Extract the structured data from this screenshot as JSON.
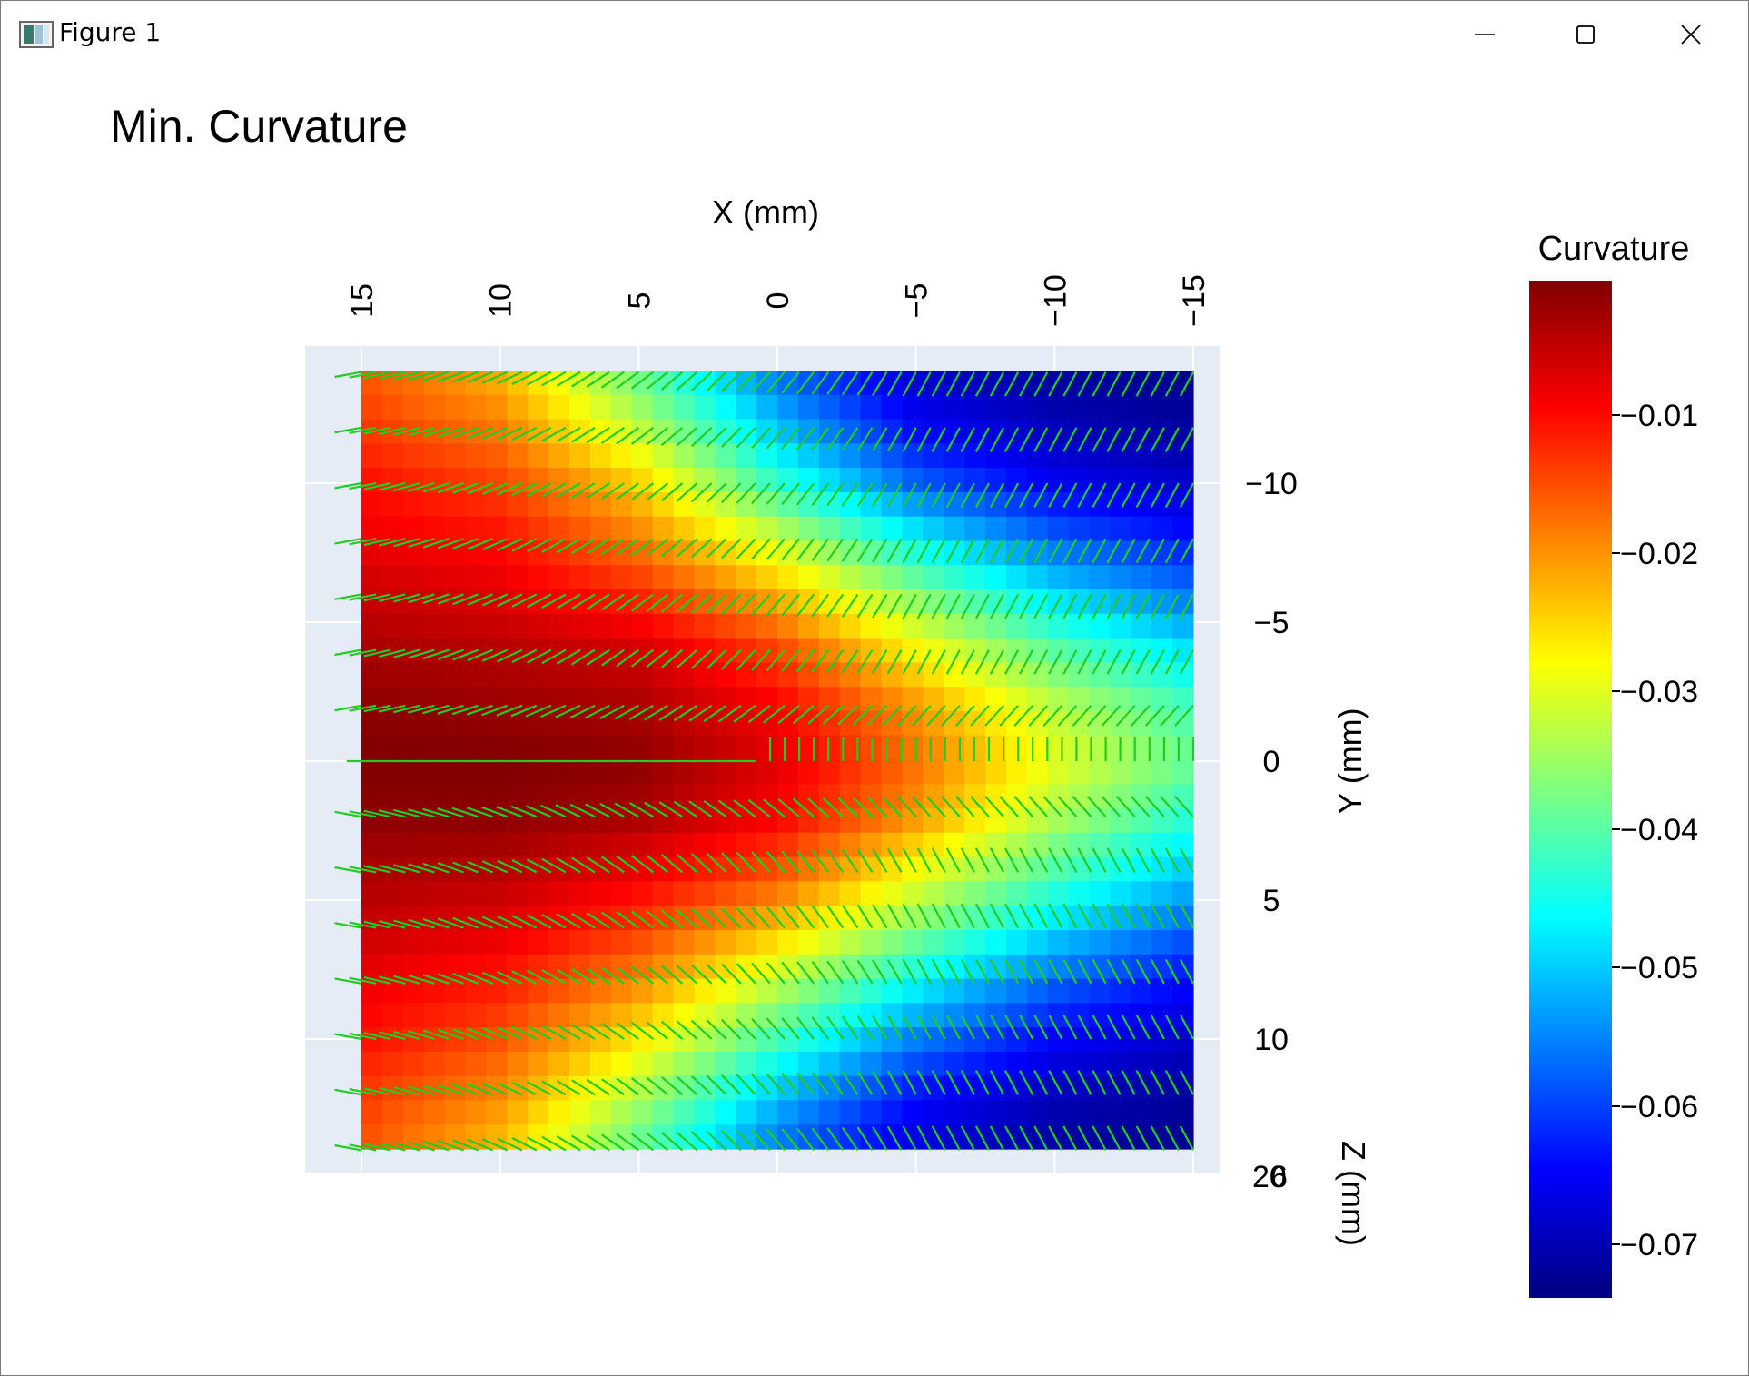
{
  "window": {
    "title": "Figure 1",
    "icons": [
      "figure-app-icon",
      "minimize-icon",
      "maximize-icon",
      "close-icon"
    ]
  },
  "figure": {
    "title": "Min. Curvature",
    "axis_labels": {
      "x": "X (mm)",
      "y": "Y (mm)",
      "z": "Z (mm)"
    },
    "x_ticks": [
      "15",
      "10",
      "5",
      "0",
      "−5",
      "−10",
      "−15"
    ],
    "y_ticks": [
      "−10",
      "−5",
      "0",
      "5",
      "10"
    ],
    "z_ticks_overlap": [
      "20",
      "6"
    ],
    "colorbar": {
      "title": "Curvature",
      "ticks": [
        "−0.01",
        "−0.02",
        "−0.03",
        "−0.04",
        "−0.05",
        "−0.06",
        "−0.07"
      ],
      "colormap": "jet"
    },
    "colors": {
      "panel_background": "#e5ecf6",
      "arrow": "#22cc22",
      "grid": "#ffffff"
    }
  },
  "chart_data": {
    "type": "heatmap",
    "title": "Min. Curvature",
    "xlabel": "X (mm)",
    "ylabel": "Y (mm)",
    "zlabel": "Z (mm)",
    "x_range": [
      15,
      -15
    ],
    "y_range": [
      -14,
      14
    ],
    "colorbar_range": [
      -0.075,
      -0.002
    ],
    "x": [
      15,
      10,
      5,
      0,
      -5,
      -10,
      -15
    ],
    "y": [
      -14,
      -12,
      -10,
      -8,
      -6,
      -4,
      -2,
      0,
      2,
      4,
      6,
      8,
      10,
      12,
      14
    ],
    "z": [
      [
        -0.017,
        -0.024,
        -0.04,
        -0.058,
        -0.07,
        -0.073,
        -0.074
      ],
      [
        -0.015,
        -0.02,
        -0.034,
        -0.052,
        -0.066,
        -0.071,
        -0.073
      ],
      [
        -0.012,
        -0.016,
        -0.026,
        -0.044,
        -0.059,
        -0.067,
        -0.07
      ],
      [
        -0.01,
        -0.012,
        -0.02,
        -0.033,
        -0.048,
        -0.059,
        -0.065
      ],
      [
        -0.007,
        -0.009,
        -0.014,
        -0.024,
        -0.038,
        -0.05,
        -0.058
      ],
      [
        -0.005,
        -0.006,
        -0.008,
        -0.016,
        -0.029,
        -0.041,
        -0.05
      ],
      [
        -0.003,
        -0.004,
        -0.005,
        -0.011,
        -0.022,
        -0.034,
        -0.043
      ],
      [
        -0.002,
        -0.002,
        -0.003,
        -0.009,
        -0.019,
        -0.031,
        -0.04
      ],
      [
        -0.003,
        -0.003,
        -0.005,
        -0.011,
        -0.022,
        -0.035,
        -0.045
      ],
      [
        -0.005,
        -0.006,
        -0.01,
        -0.017,
        -0.03,
        -0.042,
        -0.052
      ],
      [
        -0.007,
        -0.009,
        -0.015,
        -0.025,
        -0.038,
        -0.05,
        -0.059
      ],
      [
        -0.01,
        -0.013,
        -0.021,
        -0.034,
        -0.048,
        -0.059,
        -0.066
      ],
      [
        -0.012,
        -0.017,
        -0.028,
        -0.043,
        -0.057,
        -0.066,
        -0.07
      ],
      [
        -0.015,
        -0.021,
        -0.035,
        -0.052,
        -0.065,
        -0.071,
        -0.073
      ],
      [
        -0.017,
        -0.025,
        -0.041,
        -0.058,
        -0.069,
        -0.073,
        -0.074
      ]
    ],
    "grid": true,
    "legend": "right"
  }
}
